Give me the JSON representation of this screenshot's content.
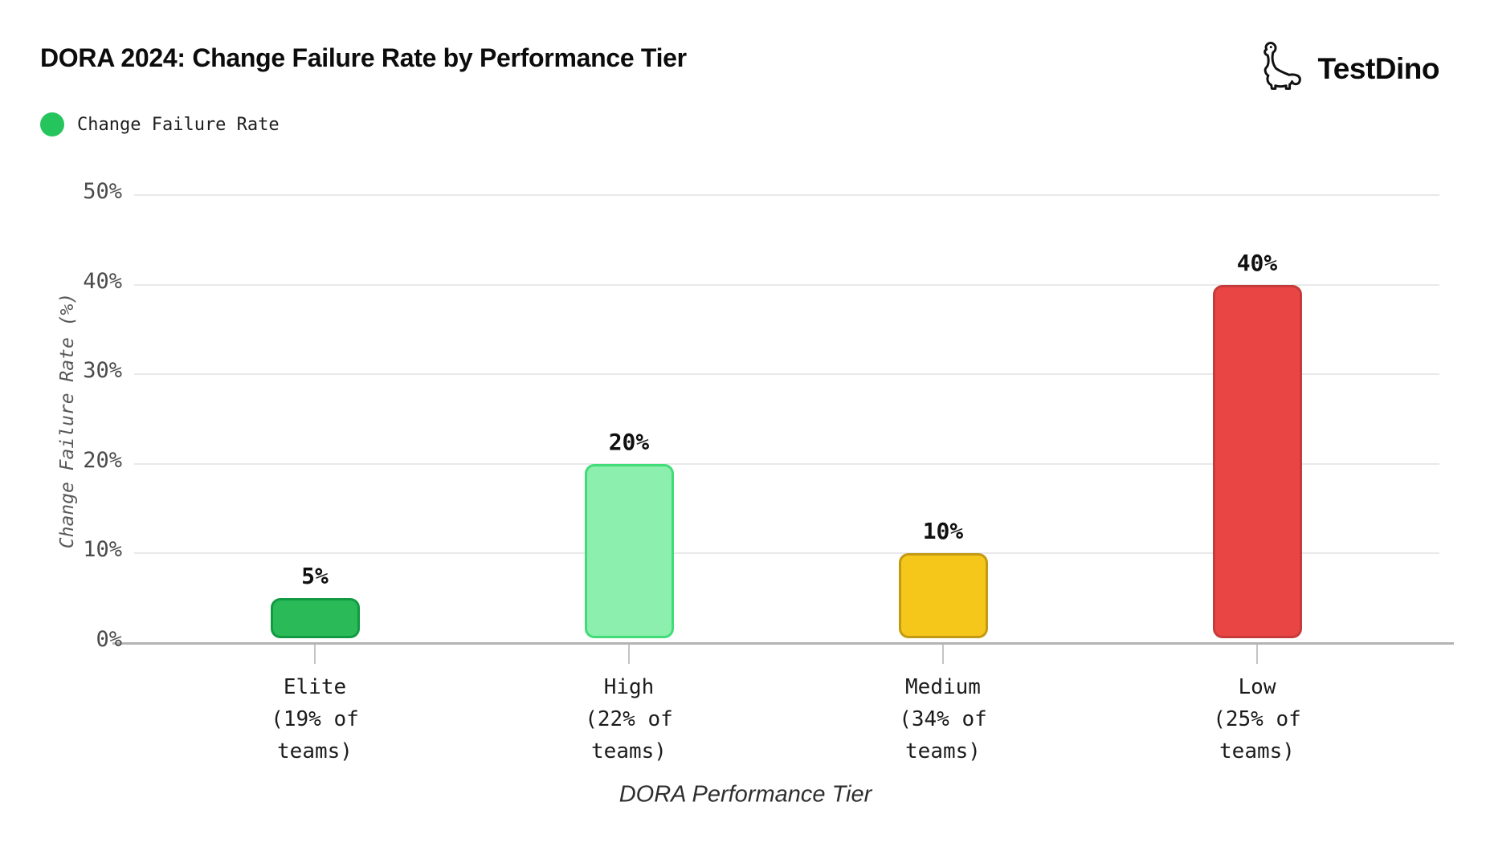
{
  "header": {
    "title": "DORA 2024: Change Failure Rate by Performance Tier",
    "brand": "TestDino"
  },
  "legend": {
    "label": "Change Failure Rate",
    "dot_color": "#25c45c"
  },
  "colors": {
    "gridline": "#e9e9e9",
    "axis_line": "#b4b4b4",
    "tick": "#c4c4c4",
    "title_text": "#0c0c0c",
    "tick_label_text": "#4a4a4a"
  },
  "chart_data": {
    "type": "bar",
    "title": "DORA 2024: Change Failure Rate by Performance Tier",
    "xlabel": "DORA Performance Tier",
    "ylabel": "Change Failure Rate (%)",
    "ylim": [
      0,
      50
    ],
    "yticks": [
      0,
      10,
      20,
      30,
      40,
      50
    ],
    "ytick_labels": [
      "0%",
      "10%",
      "20%",
      "30%",
      "40%",
      "50%"
    ],
    "grid": true,
    "legend_position": "top-left",
    "series_name": "Change Failure Rate",
    "categories": [
      {
        "tier": "Elite",
        "label_lines": [
          "Elite",
          "(19% of",
          "teams)"
        ],
        "value": 5,
        "value_label": "5%",
        "fill": "#2aba58",
        "stroke": "#129a43"
      },
      {
        "tier": "High",
        "label_lines": [
          "High",
          "(22% of",
          "teams)"
        ],
        "value": 20,
        "value_label": "20%",
        "fill": "#8cefae",
        "stroke": "#41dc77"
      },
      {
        "tier": "Medium",
        "label_lines": [
          "Medium",
          "(34% of",
          "teams)"
        ],
        "value": 10,
        "value_label": "10%",
        "fill": "#f5c71b",
        "stroke": "#c49a12"
      },
      {
        "tier": "Low",
        "label_lines": [
          "Low",
          "(25% of",
          "teams)"
        ],
        "value": 40,
        "value_label": "40%",
        "fill": "#ea4545",
        "stroke": "#c73a3a"
      }
    ]
  }
}
